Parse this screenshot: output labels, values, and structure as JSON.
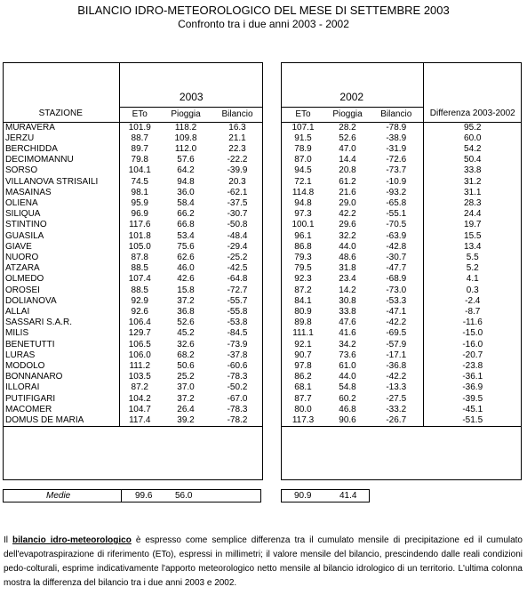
{
  "header": {
    "title": "BILANCIO IDRO-METEOROLOGICO DEL MESE DI SETTEMBRE 2003",
    "subtitle": "Confronto tra i due anni 2003 - 2002"
  },
  "years": {
    "left": "2003",
    "right": "2002"
  },
  "columns": {
    "station": "STAZIONE",
    "eto": "ETo",
    "pioggia": "Pioggia",
    "bilancio": "Bilancio",
    "diff": "Differenza 2003-2002"
  },
  "rows": [
    {
      "station": "MURAVERA",
      "eto03": "101.9",
      "pio03": "118.2",
      "bil03": "16.3",
      "eto02": "107.1",
      "pio02": "28.2",
      "bil02": "-78.9",
      "diff": "95.2"
    },
    {
      "station": "JERZU",
      "eto03": "88.7",
      "pio03": "109.8",
      "bil03": "21.1",
      "eto02": "91.5",
      "pio02": "52.6",
      "bil02": "-38.9",
      "diff": "60.0"
    },
    {
      "station": "BERCHIDDA",
      "eto03": "89.7",
      "pio03": "112.0",
      "bil03": "22.3",
      "eto02": "78.9",
      "pio02": "47.0",
      "bil02": "-31.9",
      "diff": "54.2"
    },
    {
      "station": "DECIMOMANNU",
      "eto03": "79.8",
      "pio03": "57.6",
      "bil03": "-22.2",
      "eto02": "87.0",
      "pio02": "14.4",
      "bil02": "-72.6",
      "diff": "50.4"
    },
    {
      "station": "SORSO",
      "eto03": "104.1",
      "pio03": "64.2",
      "bil03": "-39.9",
      "eto02": "94.5",
      "pio02": "20.8",
      "bil02": "-73.7",
      "diff": "33.8"
    },
    {
      "station": "VILLANOVA STRISAILI",
      "eto03": "74.5",
      "pio03": "94.8",
      "bil03": "20.3",
      "eto02": "72.1",
      "pio02": "61.2",
      "bil02": "-10.9",
      "diff": "31.2"
    },
    {
      "station": "MASAINAS",
      "eto03": "98.1",
      "pio03": "36.0",
      "bil03": "-62.1",
      "eto02": "114.8",
      "pio02": "21.6",
      "bil02": "-93.2",
      "diff": "31.1"
    },
    {
      "station": "OLIENA",
      "eto03": "95.9",
      "pio03": "58.4",
      "bil03": "-37.5",
      "eto02": "94.8",
      "pio02": "29.0",
      "bil02": "-65.8",
      "diff": "28.3"
    },
    {
      "station": "SILIQUA",
      "eto03": "96.9",
      "pio03": "66.2",
      "bil03": "-30.7",
      "eto02": "97.3",
      "pio02": "42.2",
      "bil02": "-55.1",
      "diff": "24.4"
    },
    {
      "station": "STINTINO",
      "eto03": "117.6",
      "pio03": "66.8",
      "bil03": "-50.8",
      "eto02": "100.1",
      "pio02": "29.6",
      "bil02": "-70.5",
      "diff": "19.7"
    },
    {
      "station": "GUASILA",
      "eto03": "101.8",
      "pio03": "53.4",
      "bil03": "-48.4",
      "eto02": "96.1",
      "pio02": "32.2",
      "bil02": "-63.9",
      "diff": "15.5"
    },
    {
      "station": "GIAVE",
      "eto03": "105.0",
      "pio03": "75.6",
      "bil03": "-29.4",
      "eto02": "86.8",
      "pio02": "44.0",
      "bil02": "-42.8",
      "diff": "13.4"
    },
    {
      "station": "NUORO",
      "eto03": "87.8",
      "pio03": "62.6",
      "bil03": "-25.2",
      "eto02": "79.3",
      "pio02": "48.6",
      "bil02": "-30.7",
      "diff": "5.5"
    },
    {
      "station": "ATZARA",
      "eto03": "88.5",
      "pio03": "46.0",
      "bil03": "-42.5",
      "eto02": "79.5",
      "pio02": "31.8",
      "bil02": "-47.7",
      "diff": "5.2"
    },
    {
      "station": "OLMEDO",
      "eto03": "107.4",
      "pio03": "42.6",
      "bil03": "-64.8",
      "eto02": "92.3",
      "pio02": "23.4",
      "bil02": "-68.9",
      "diff": "4.1"
    },
    {
      "station": "OROSEI",
      "eto03": "88.5",
      "pio03": "15.8",
      "bil03": "-72.7",
      "eto02": "87.2",
      "pio02": "14.2",
      "bil02": "-73.0",
      "diff": "0.3"
    },
    {
      "station": "DOLIANOVA",
      "eto03": "92.9",
      "pio03": "37.2",
      "bil03": "-55.7",
      "eto02": "84.1",
      "pio02": "30.8",
      "bil02": "-53.3",
      "diff": "-2.4"
    },
    {
      "station": "ALLAI",
      "eto03": "92.6",
      "pio03": "36.8",
      "bil03": "-55.8",
      "eto02": "80.9",
      "pio02": "33.8",
      "bil02": "-47.1",
      "diff": "-8.7"
    },
    {
      "station": "SASSARI S.A.R.",
      "eto03": "106.4",
      "pio03": "52.6",
      "bil03": "-53.8",
      "eto02": "89.8",
      "pio02": "47.6",
      "bil02": "-42.2",
      "diff": "-11.6"
    },
    {
      "station": "MILIS",
      "eto03": "129.7",
      "pio03": "45.2",
      "bil03": "-84.5",
      "eto02": "111.1",
      "pio02": "41.6",
      "bil02": "-69.5",
      "diff": "-15.0"
    },
    {
      "station": "BENETUTTI",
      "eto03": "106.5",
      "pio03": "32.6",
      "bil03": "-73.9",
      "eto02": "92.1",
      "pio02": "34.2",
      "bil02": "-57.9",
      "diff": "-16.0"
    },
    {
      "station": "LURAS",
      "eto03": "106.0",
      "pio03": "68.2",
      "bil03": "-37.8",
      "eto02": "90.7",
      "pio02": "73.6",
      "bil02": "-17.1",
      "diff": "-20.7"
    },
    {
      "station": "MODOLO",
      "eto03": "111.2",
      "pio03": "50.6",
      "bil03": "-60.6",
      "eto02": "97.8",
      "pio02": "61.0",
      "bil02": "-36.8",
      "diff": "-23.8"
    },
    {
      "station": "BONNANARO",
      "eto03": "103.5",
      "pio03": "25.2",
      "bil03": "-78.3",
      "eto02": "86.2",
      "pio02": "44.0",
      "bil02": "-42.2",
      "diff": "-36.1"
    },
    {
      "station": "ILLORAI",
      "eto03": "87.2",
      "pio03": "37.0",
      "bil03": "-50.2",
      "eto02": "68.1",
      "pio02": "54.8",
      "bil02": "-13.3",
      "diff": "-36.9"
    },
    {
      "station": "PUTIFIGARI",
      "eto03": "104.2",
      "pio03": "37.2",
      "bil03": "-67.0",
      "eto02": "87.7",
      "pio02": "60.2",
      "bil02": "-27.5",
      "diff": "-39.5"
    },
    {
      "station": "MACOMER",
      "eto03": "104.7",
      "pio03": "26.4",
      "bil03": "-78.3",
      "eto02": "80.0",
      "pio02": "46.8",
      "bil02": "-33.2",
      "diff": "-45.1"
    },
    {
      "station": "DOMUS DE MARIA",
      "eto03": "117.4",
      "pio03": "39.2",
      "bil03": "-78.2",
      "eto02": "117.3",
      "pio02": "90.6",
      "bil02": "-26.7",
      "diff": "-51.5"
    }
  ],
  "medie": {
    "label": "Medie",
    "eto03": "99.6",
    "pio03": "56.0",
    "eto02": "90.9",
    "pio02": "41.4"
  },
  "note": {
    "p1": "Il ",
    "b1": "bilancio idro-meteorologico",
    "p2": " è espresso come semplice differenza tra il cumulato mensile di precipitazione ed il cumulato dell'evapotraspirazione di riferimento (ETo), espressi in millimetri; il valore mensile del bilancio, prescindendo dalle reali condizioni pedo-colturali, esprime indicativamente l'apporto meteorologico netto mensile al bilancio idrologico di un territorio. L'ultima colonna mostra la differenza del bilancio tra i due anni 2003 e 2002."
  }
}
